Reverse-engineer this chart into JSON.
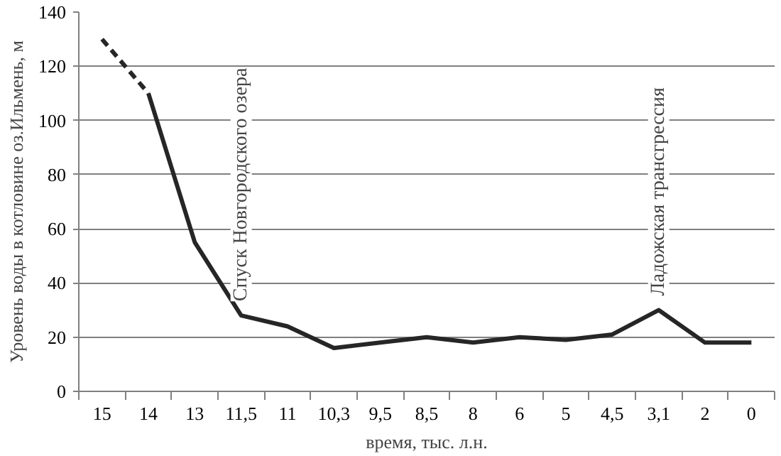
{
  "chart_data": {
    "type": "line",
    "xlabel": "время, тыс. л.н.",
    "ylabel": "Уровень воды в котловине оз.Ильмень, м",
    "categories": [
      "15",
      "14",
      "13",
      "11,5",
      "11",
      "10,3",
      "9,5",
      "8,5",
      "8",
      "6",
      "5",
      "4,5",
      "3,1",
      "2",
      "0"
    ],
    "series": [
      {
        "color": "#262626",
        "line_style": "dashed",
        "values": [
          130,
          110,
          null,
          null,
          null,
          null,
          null,
          null,
          null,
          null,
          null,
          null,
          null,
          null,
          null
        ]
      },
      {
        "color": "#262626",
        "line_style": "solid",
        "values": [
          null,
          110,
          55,
          28,
          24,
          16,
          18,
          20,
          18,
          20,
          19,
          21,
          30,
          18,
          18
        ]
      }
    ],
    "ylim": [
      0,
      140
    ],
    "yticks": [
      0,
      20,
      40,
      60,
      80,
      100,
      120,
      140
    ],
    "grid": "y",
    "marker": "none",
    "annotations": [
      {
        "text": "Спуск Новгородского озера",
        "x": "11,5",
        "y": 28
      },
      {
        "text": "Ладожская трансгрессия",
        "x": "3,1",
        "y": 30
      }
    ]
  }
}
